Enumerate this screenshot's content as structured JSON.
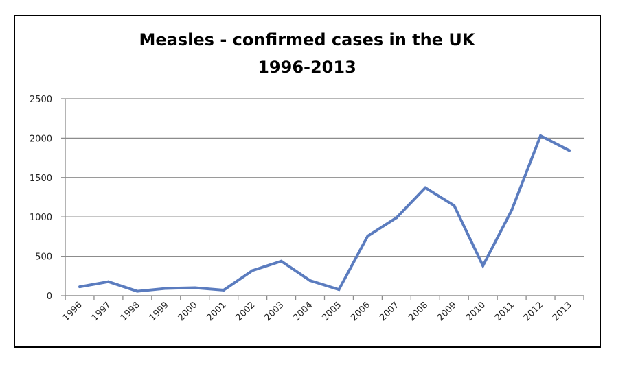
{
  "chart_data": {
    "type": "line",
    "title": "Measles - confirmed cases in the UK",
    "subtitle": "1996-2013",
    "xlabel": "",
    "ylabel": "",
    "categories": [
      "1996",
      "1997",
      "1998",
      "1999",
      "2000",
      "2001",
      "2002",
      "2003",
      "2004",
      "2005",
      "2006",
      "2007",
      "2008",
      "2009",
      "2010",
      "2011",
      "2012",
      "2013"
    ],
    "series": [
      {
        "name": "Confirmed cases",
        "color": "#5b7cbf",
        "values": [
          112,
          177,
          56,
          92,
          100,
          70,
          319,
          438,
          191,
          77,
          756,
          990,
          1370,
          1144,
          380,
          1086,
          2030,
          1843
        ]
      }
    ],
    "ylim": [
      0,
      2500
    ],
    "yticks": [
      0,
      500,
      1000,
      1500,
      2000,
      2500
    ],
    "grid": true,
    "legend": "none"
  }
}
